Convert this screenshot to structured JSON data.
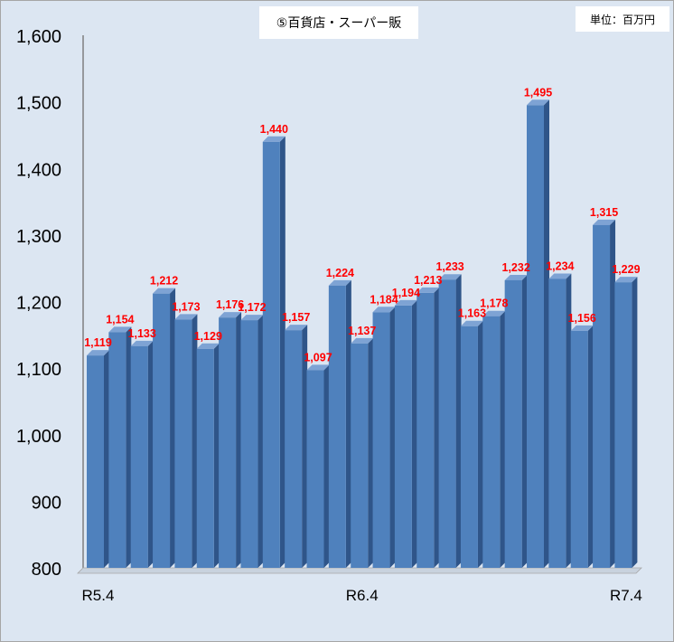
{
  "title": "⑤百貨店・スーパー販",
  "unit_label": "単位：百万円",
  "colors": {
    "background": "#dce6f2",
    "bar_front": "#4f81bd",
    "bar_side": "#2f5589",
    "bar_top": "#7ea3d4",
    "data_label": "#ff0000",
    "axis": "#7f7f7f"
  },
  "chart_data": {
    "type": "bar",
    "title": "⑤百貨店・スーパー販",
    "ylim": [
      800,
      1600
    ],
    "y_ticks": [
      "800",
      "900",
      "1,000",
      "1,100",
      "1,200",
      "1,300",
      "1,400",
      "1,500",
      "1,600"
    ],
    "x_tick_labels": [
      {
        "index": 0,
        "label": "R5.4"
      },
      {
        "index": 12,
        "label": "R6.4"
      },
      {
        "index": 24,
        "label": "R7.4"
      }
    ],
    "values": [
      1119,
      1154,
      1133,
      1212,
      1173,
      1129,
      1176,
      1172,
      1440,
      1157,
      1097,
      1224,
      1137,
      1184,
      1194,
      1213,
      1233,
      1163,
      1178,
      1232,
      1495,
      1234,
      1156,
      1315,
      1229
    ],
    "data_labels": [
      "1,119",
      "1,154",
      "1,133",
      "1,212",
      "1,173",
      "1,129",
      "1,176",
      "1,172",
      "1,440",
      "1,157",
      "1,097",
      "1,224",
      "1,137",
      "1,184",
      "1,194",
      "1,213",
      "1,233",
      "1,163",
      "1,178",
      "1,232",
      "1,495",
      "1,234",
      "1,156",
      "1,315",
      "1,229"
    ],
    "grid": false,
    "legend": "none"
  }
}
